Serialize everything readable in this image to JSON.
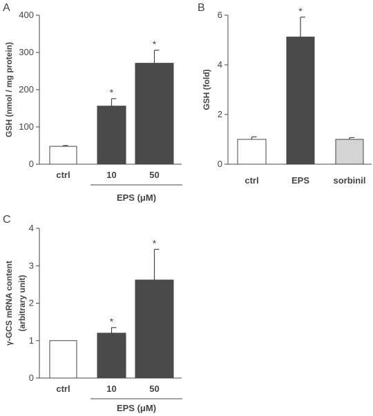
{
  "colors": {
    "axis": "#444444",
    "white_bar": "#ffffff",
    "dark_bar": "#4a4a4a",
    "light_bar": "#d4d4d4"
  },
  "chart_data": [
    {
      "panel": "A",
      "type": "bar",
      "categories": [
        "ctrl",
        "10",
        "50"
      ],
      "values": [
        48,
        156,
        271
      ],
      "errors": [
        2,
        20,
        35
      ],
      "significant": [
        false,
        true,
        true
      ],
      "significance_mark": "*",
      "bar_colors": [
        "white",
        "dark",
        "dark"
      ],
      "ylabel": "GSH  (nmol / mg protein)",
      "ylim": [
        0,
        400
      ],
      "yticks": [
        0,
        100,
        200,
        300,
        400
      ],
      "group_label": "EPS  (μM)",
      "group_categories": [
        1,
        2
      ],
      "grid": false
    },
    {
      "panel": "B",
      "type": "bar",
      "categories": [
        "ctrl",
        "EPS",
        "sorbinil"
      ],
      "values": [
        1.0,
        5.12,
        1.0
      ],
      "errors": [
        0.1,
        0.8,
        0.07
      ],
      "significant": [
        false,
        true,
        false
      ],
      "significance_mark": "*",
      "bar_colors": [
        "white",
        "dark",
        "light"
      ],
      "ylabel": "GSH  (fold)",
      "ylim": [
        0,
        6
      ],
      "yticks": [
        0,
        2,
        4,
        6
      ],
      "grid": false
    },
    {
      "panel": "C",
      "type": "bar",
      "categories": [
        "ctrl",
        "10",
        "50"
      ],
      "values": [
        1.0,
        1.2,
        2.62
      ],
      "errors": [
        0,
        0.15,
        0.82
      ],
      "significant": [
        false,
        true,
        true
      ],
      "significance_mark": "*",
      "bar_colors": [
        "white",
        "dark",
        "dark"
      ],
      "ylabel": "γ-GCS mRNA  content",
      "ylabel2": "(arbitrary unit)",
      "ylim": [
        0,
        4
      ],
      "yticks": [
        0,
        1,
        2,
        3,
        4
      ],
      "group_label": "EPS  (μM)",
      "group_categories": [
        1,
        2
      ],
      "grid": false
    }
  ]
}
